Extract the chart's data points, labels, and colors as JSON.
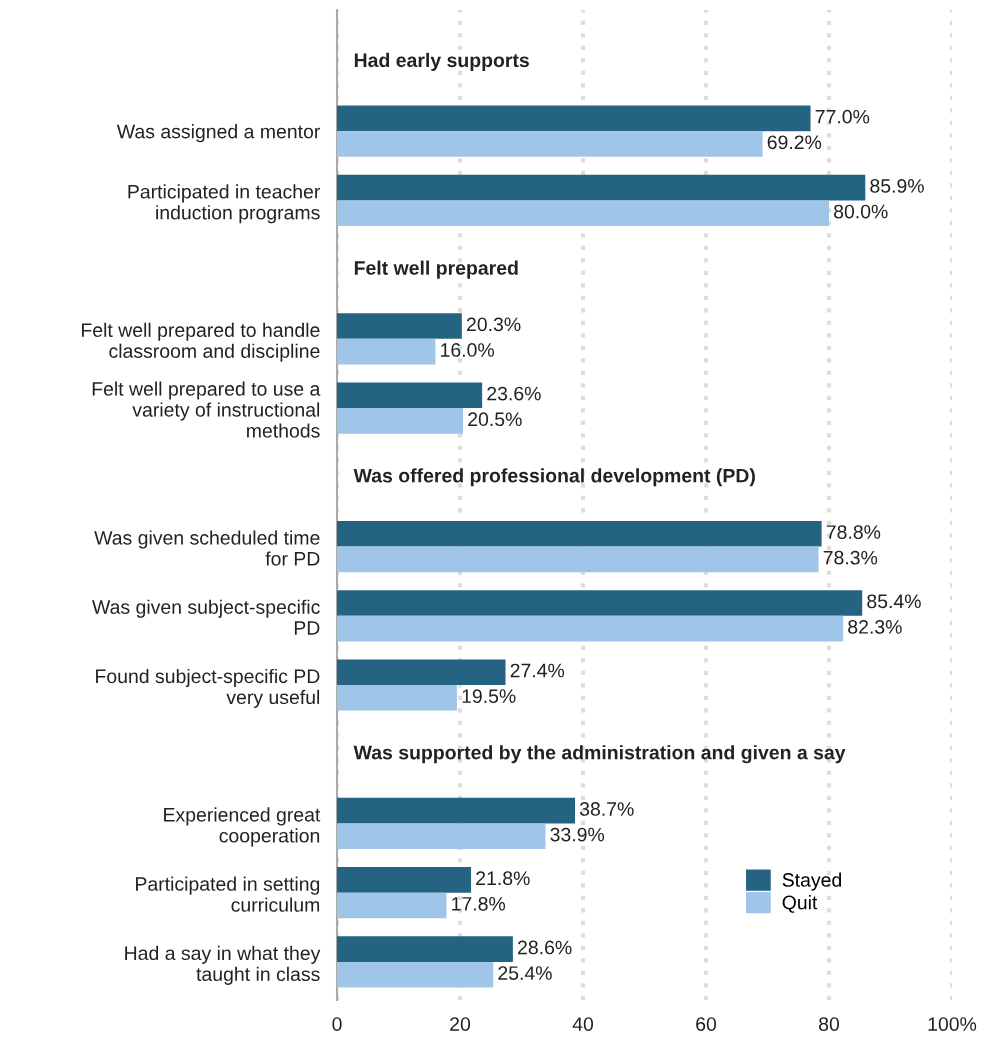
{
  "chart_data": {
    "type": "bar",
    "orientation": "horizontal",
    "categories": [
      null,
      "Was assigned a mentor",
      "Participated in teacher\ninduction programs",
      null,
      "Felt well prepared to handle\nclassroom and discipline",
      "Felt well prepared to use a\nvariety of instructional\nmethods",
      null,
      "Was given scheduled time\nfor PD",
      "Was given subject-specific\nPD",
      "Found subject-specific PD\nvery useful",
      null,
      "Experienced great\ncooperation",
      "Participated in setting\ncurriculum",
      "Had a say in what they\ntaught in class"
    ],
    "series": [
      {
        "name": "Stayed",
        "color": "#256382",
        "values": [
          null,
          77.0,
          85.9,
          null,
          20.3,
          23.6,
          null,
          78.8,
          85.4,
          27.4,
          null,
          38.7,
          21.8,
          28.6
        ],
        "value_labels": [
          null,
          "77.0%",
          "85.9%",
          null,
          "20.3%",
          "23.6%",
          null,
          "78.8%",
          "85.4%",
          "27.4%",
          null,
          "38.7%",
          "21.8%",
          "28.6%"
        ]
      },
      {
        "name": "Quit",
        "color": "#9fc5e8",
        "values": [
          null,
          69.2,
          80.0,
          null,
          16.0,
          20.5,
          null,
          78.3,
          82.3,
          19.5,
          null,
          33.9,
          17.8,
          25.4
        ],
        "value_labels": [
          null,
          "69.2%",
          "80.0%",
          null,
          "16.0%",
          "20.5%",
          null,
          "78.3%",
          "82.3%",
          "19.5%",
          null,
          "33.9%",
          "17.8%",
          "25.4%"
        ]
      }
    ],
    "annotations": [
      "Had early supports",
      "Felt well prepared",
      "Was offered professional development (PD)",
      "Was supported by the administration and given a say"
    ],
    "xlim": [
      0,
      100
    ],
    "xticks": [
      0,
      20,
      40,
      60,
      80,
      {
        "value": 100,
        "label": "100%"
      }
    ],
    "grid": "x",
    "legend": "bottom right"
  }
}
